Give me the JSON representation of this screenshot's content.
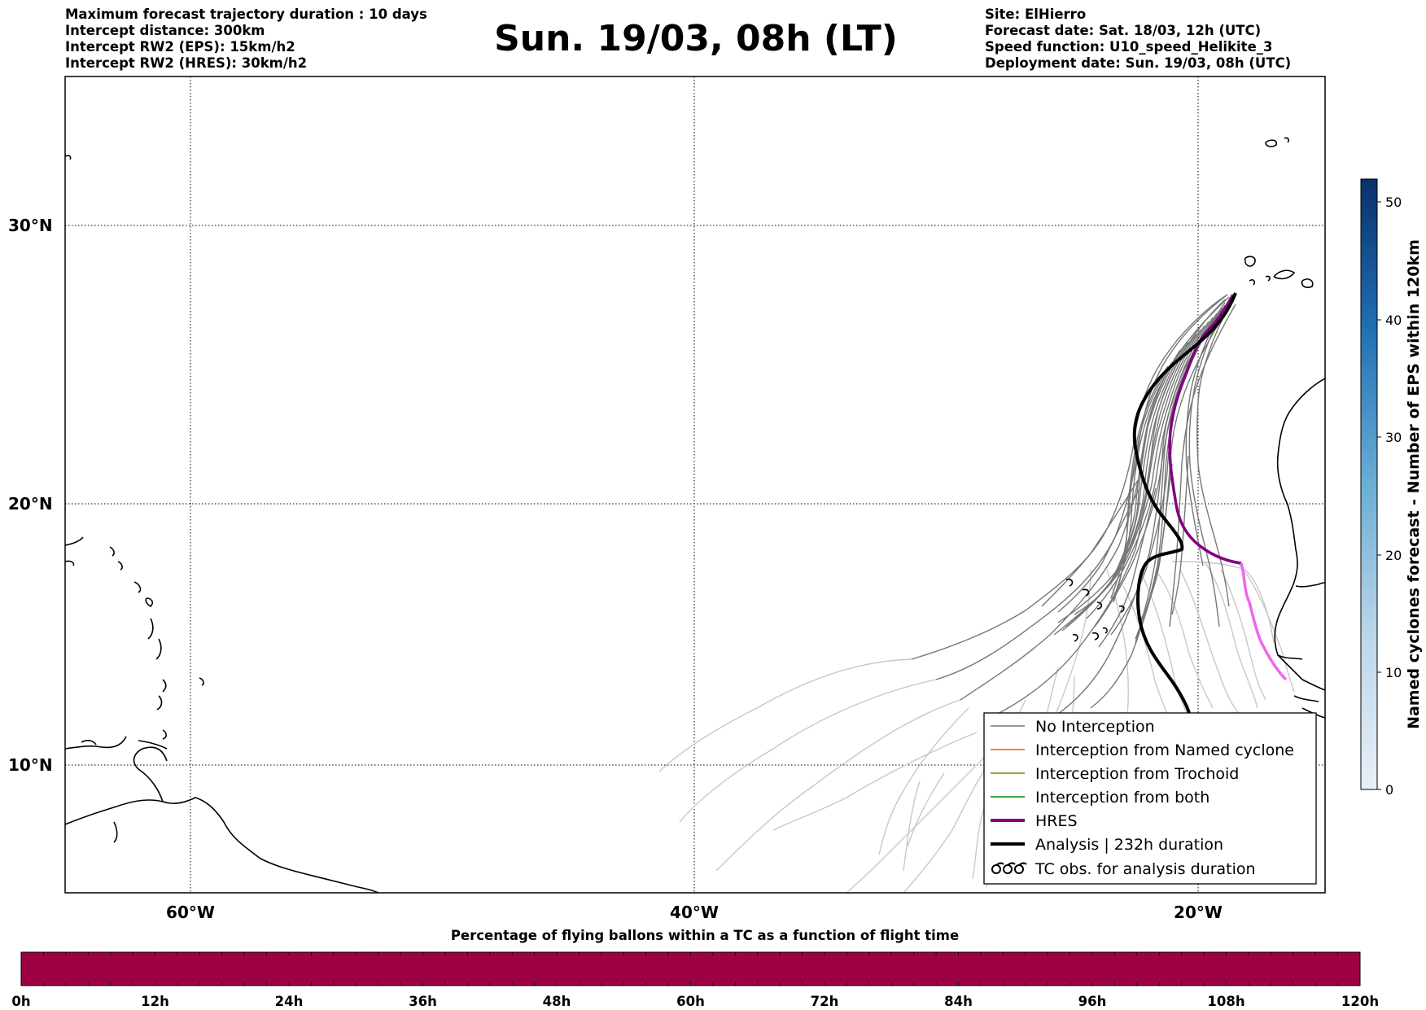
{
  "header": {
    "left_lines": [
      "Maximum forecast trajectory duration : 10 days",
      "Intercept distance: 300km",
      "Intercept RW2 (EPS):  15km/h2",
      "Intercept RW2 (HRES): 30km/h2"
    ],
    "title": "Sun. 19/03, 08h (LT)",
    "right_lines": [
      "Site: ElHierro",
      "Forecast date: Sat. 18/03, 12h (UTC)",
      "Speed function: U10_speed_Helikite_3",
      "Deployment date: Sun. 19/03, 08h (UTC)"
    ]
  },
  "map": {
    "lat_labels": [
      "30°N",
      "20°N",
      "10°N"
    ],
    "lon_labels": [
      "60°W",
      "40°W",
      "20°W"
    ],
    "grid": "dotted",
    "colors": {
      "no_interception": "#777777",
      "no_interception_light": "#c8c8c8",
      "named_cyclone": "#ff5500",
      "trochoid": "#808000",
      "both": "#008000",
      "hres": "#800080",
      "hres_light": "#ee66ee",
      "analysis": "#000000"
    }
  },
  "legend": {
    "entries": [
      {
        "label": "No Interception",
        "style": "thin",
        "color": "#777777"
      },
      {
        "label": "Interception from Named cyclone",
        "style": "thin",
        "color": "#ff5500"
      },
      {
        "label": "Interception from Trochoid",
        "style": "thin",
        "color": "#808000"
      },
      {
        "label": "Interception from both",
        "style": "thin",
        "color": "#008000"
      },
      {
        "label": "HRES",
        "style": "thick",
        "color": "#800080"
      },
      {
        "label": "Analysis | 232h duration",
        "style": "thick",
        "color": "#000000"
      },
      {
        "label": "TC obs. for analysis duration",
        "style": "cyclone-symbols",
        "color": "#000000"
      }
    ]
  },
  "colorbar_right": {
    "label": "Named cyclones forecast - Number of EPS within 120km",
    "ticks": [
      "0",
      "10",
      "20",
      "30",
      "40",
      "50"
    ],
    "color_low": "#e8f0f8",
    "color_high": "#08306b"
  },
  "colorbar_bottom": {
    "title": "Percentage of flying ballons within a TC as a function of flight time",
    "ticks": [
      "0h",
      "12h",
      "24h",
      "36h",
      "48h",
      "60h",
      "72h",
      "84h",
      "96h",
      "108h",
      "120h"
    ],
    "fill_color": "#9e0142"
  }
}
